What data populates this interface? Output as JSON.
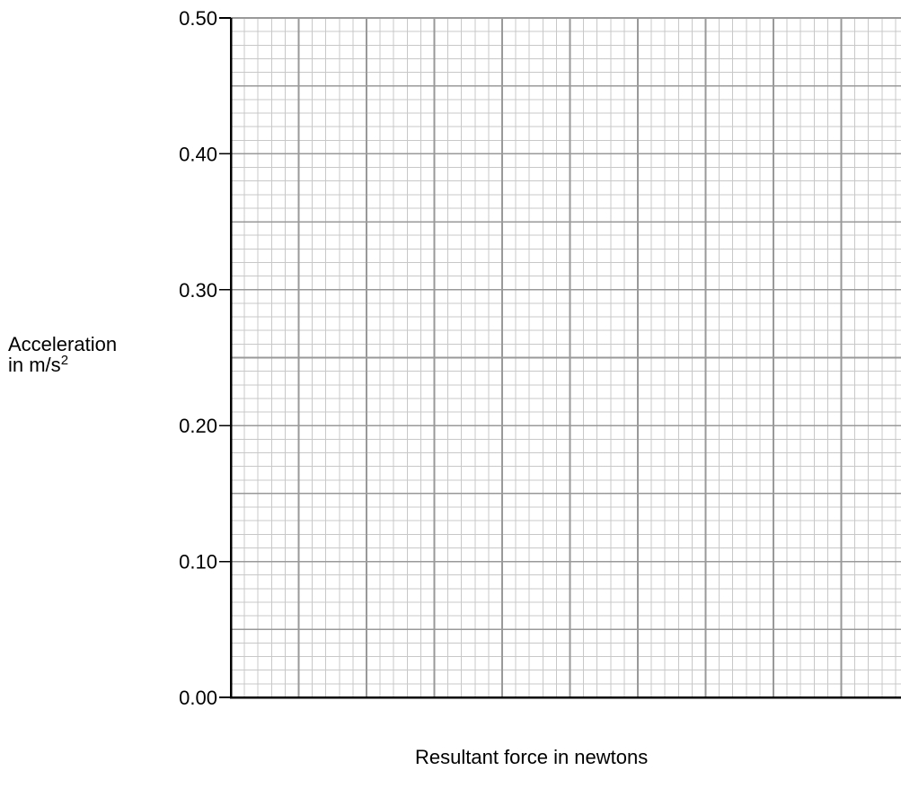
{
  "chart_data": {
    "type": "scatter",
    "title": "",
    "xlabel": "Resultant force in newtons",
    "ylabel_line1": "Acceleration",
    "ylabel_line2_base": "in m/s",
    "ylabel_line2_sup": "2",
    "y_ticks": [
      "0.00",
      "0.10",
      "0.20",
      "0.30",
      "0.40",
      "0.50"
    ],
    "y_tick_values": [
      0,
      0.1,
      0.2,
      0.3,
      0.4,
      0.5
    ],
    "ylim": [
      0,
      0.5
    ],
    "x_ticks": [],
    "grid": "on",
    "series": [],
    "colors": {
      "axis": "#000000",
      "major_grid": "#999999",
      "minor_grid": "#c8c8c8",
      "background": "#ffffff"
    }
  }
}
